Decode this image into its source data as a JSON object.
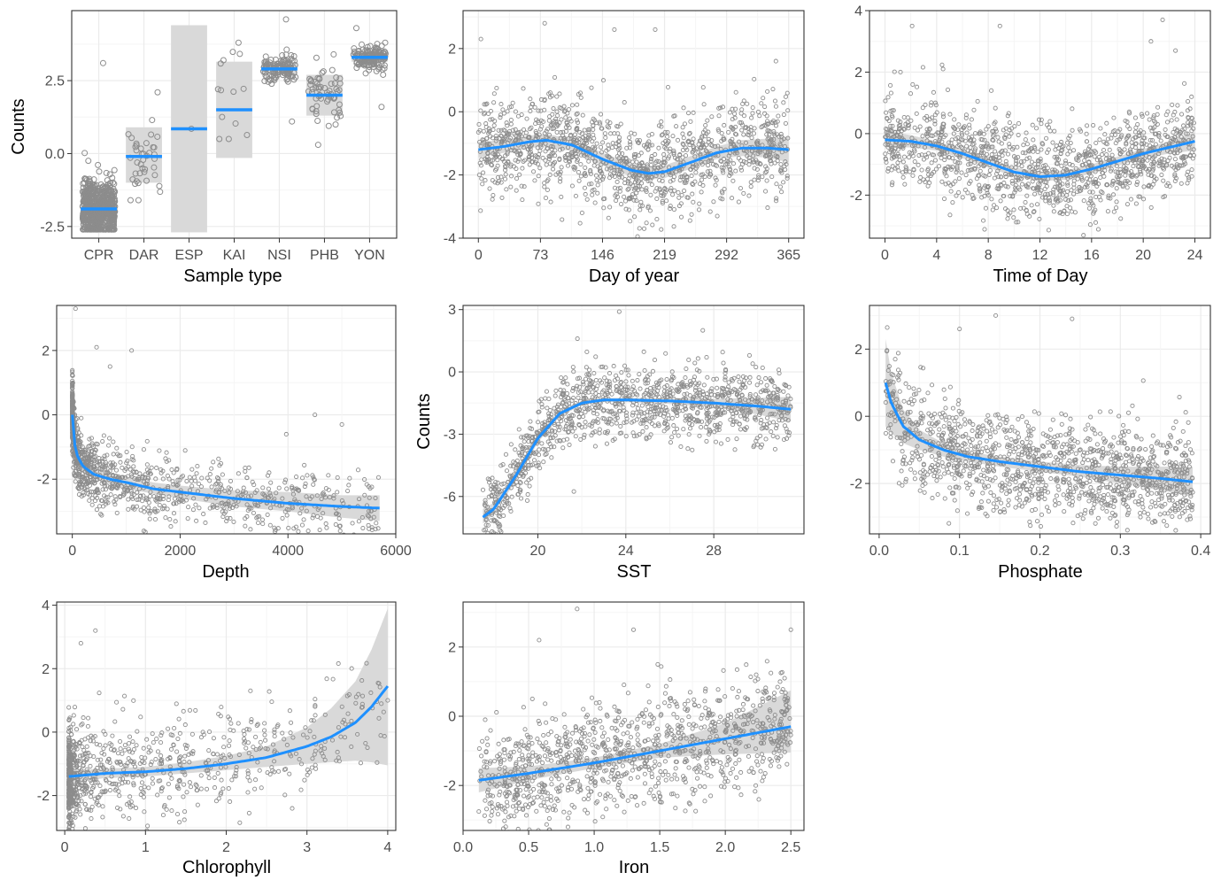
{
  "colors": {
    "point_stroke": "#8c8c8c",
    "fit_line": "#1e90ff",
    "ribbon": "#d9d9d9",
    "grid_major": "#ebebeb",
    "grid_minor": "#f5f5f5",
    "panel_border": "#333333"
  },
  "chart_data": [
    {
      "type": "scatter",
      "xlabel": "Sample type",
      "ylabel": "Counts",
      "categories": [
        "CPR",
        "DAR",
        "ESP",
        "KAI",
        "NSI",
        "PHB",
        "YON"
      ],
      "xlim": [
        0.4,
        7.6
      ],
      "ylim": [
        -2.9,
        4.9
      ],
      "yticks": [
        -2.5,
        0.0,
        2.5
      ],
      "ytick_labels": [
        "-2.5",
        "0.0",
        "2.5"
      ],
      "category_fit": [
        {
          "category": "CPR",
          "mean": -1.9,
          "lower": -2.6,
          "upper": -1.2,
          "n": 600,
          "min": -2.6,
          "max": 3.1
        },
        {
          "category": "DAR",
          "mean": -0.1,
          "lower": -1.0,
          "upper": 0.9,
          "n": 40,
          "min": -1.6,
          "max": 2.1
        },
        {
          "category": "ESP",
          "mean": 0.85,
          "lower": -2.7,
          "upper": 4.4,
          "n": 1,
          "min": 0.85,
          "max": 0.85
        },
        {
          "category": "KAI",
          "mean": 1.5,
          "lower": -0.15,
          "upper": 3.15,
          "n": 14,
          "min": 0.5,
          "max": 3.8
        },
        {
          "category": "NSI",
          "mean": 2.9,
          "lower": 2.7,
          "upper": 3.1,
          "n": 120,
          "min": 1.1,
          "max": 4.6
        },
        {
          "category": "PHB",
          "mean": 2.0,
          "lower": 1.3,
          "upper": 2.7,
          "n": 60,
          "min": 0.3,
          "max": 3.4
        },
        {
          "category": "YON",
          "mean": 3.3,
          "lower": 3.15,
          "upper": 3.45,
          "n": 150,
          "min": 1.6,
          "max": 4.3
        }
      ]
    },
    {
      "type": "scatter",
      "xlabel": "Day of year",
      "ylabel": "",
      "xlim": [
        -18,
        383
      ],
      "ylim": [
        -4.0,
        3.2
      ],
      "xticks": [
        0,
        73,
        146,
        219,
        292,
        365
      ],
      "yticks": [
        -4,
        -2,
        0,
        2
      ],
      "fit": {
        "x": [
          0,
          30,
          60,
          80,
          110,
          146,
          180,
          200,
          219,
          250,
          280,
          310,
          340,
          365
        ],
        "y": [
          -1.2,
          -1.1,
          -0.95,
          -0.9,
          -1.05,
          -1.5,
          -1.85,
          -1.95,
          -1.9,
          -1.6,
          -1.3,
          -1.15,
          -1.15,
          -1.2
        ],
        "lower": [
          -1.45,
          -1.3,
          -1.15,
          -1.1,
          -1.25,
          -1.7,
          -2.05,
          -2.15,
          -2.1,
          -1.8,
          -1.5,
          -1.4,
          -1.45,
          -1.6
        ],
        "upper": [
          -0.95,
          -0.9,
          -0.75,
          -0.7,
          -0.85,
          -1.3,
          -1.65,
          -1.75,
          -1.7,
          -1.4,
          -1.1,
          -0.9,
          -0.85,
          -0.8
        ]
      },
      "points": {
        "n": 1300,
        "x_range": [
          0,
          365
        ],
        "center": "fit",
        "spread": 0.75,
        "outliers": [
          [
            3,
            2.3
          ],
          [
            78,
            2.8
          ],
          [
            160,
            2.6
          ],
          [
            208,
            2.6
          ],
          [
            350,
            1.6
          ],
          [
            195,
            -3.7
          ],
          [
            122,
            -3.2
          ],
          [
            210,
            -3.4
          ]
        ]
      }
    },
    {
      "type": "scatter",
      "xlabel": "Time of Day",
      "ylabel": "",
      "xlim": [
        -1.2,
        25.2
      ],
      "ylim": [
        -3.4,
        4.0
      ],
      "xticks": [
        0,
        4,
        8,
        12,
        16,
        20,
        24
      ],
      "yticks": [
        -2,
        0,
        2,
        4
      ],
      "fit": {
        "x": [
          0,
          2,
          4,
          6,
          8,
          10,
          12,
          14,
          16,
          18,
          20,
          22,
          24
        ],
        "y": [
          -0.2,
          -0.25,
          -0.4,
          -0.65,
          -0.95,
          -1.25,
          -1.4,
          -1.35,
          -1.15,
          -0.9,
          -0.65,
          -0.45,
          -0.25
        ],
        "lower": [
          -0.45,
          -0.45,
          -0.55,
          -0.8,
          -1.1,
          -1.4,
          -1.55,
          -1.5,
          -1.3,
          -1.05,
          -0.8,
          -0.65,
          -0.55
        ],
        "upper": [
          0.1,
          -0.05,
          -0.25,
          -0.5,
          -0.8,
          -1.1,
          -1.25,
          -1.2,
          -1.0,
          -0.75,
          -0.5,
          -0.25,
          0.05
        ]
      },
      "points": {
        "n": 1300,
        "x_range": [
          0,
          24
        ],
        "center": "fit",
        "spread": 0.75,
        "outliers": [
          [
            2.1,
            3.5
          ],
          [
            8.9,
            3.5
          ],
          [
            21.5,
            3.7
          ],
          [
            20.6,
            3.0
          ],
          [
            22.5,
            2.7
          ],
          [
            1.2,
            2.0
          ],
          [
            4.5,
            2.1
          ]
        ]
      }
    },
    {
      "type": "scatter",
      "xlabel": "Depth",
      "ylabel": "",
      "xlim": [
        -290,
        6000
      ],
      "ylim": [
        -3.7,
        3.4
      ],
      "xticks": [
        0,
        2000,
        4000,
        6000
      ],
      "xtick_labels": [
        "0",
        "2000",
        "4000",
        "6000"
      ],
      "yticks": [
        -2,
        0,
        2
      ],
      "fit": {
        "x": [
          0,
          50,
          100,
          200,
          400,
          700,
          1000,
          1500,
          2000,
          3000,
          4000,
          5000,
          5700
        ],
        "y": [
          0.0,
          -1.0,
          -1.3,
          -1.6,
          -1.85,
          -2.0,
          -2.1,
          -2.3,
          -2.4,
          -2.6,
          -2.75,
          -2.85,
          -2.9
        ],
        "lower": [
          -0.6,
          -1.3,
          -1.55,
          -1.8,
          -2.0,
          -2.15,
          -2.3,
          -2.45,
          -2.6,
          -2.85,
          -3.0,
          -3.2,
          -3.3
        ],
        "upper": [
          0.6,
          -0.7,
          -1.05,
          -1.4,
          -1.65,
          -1.8,
          -1.9,
          -2.1,
          -2.2,
          -2.35,
          -2.4,
          -2.5,
          -2.5
        ]
      },
      "points": {
        "n": 1100,
        "x_range": [
          0,
          5700
        ],
        "center": "fit",
        "spread": 0.5,
        "skew_low_x": true,
        "outliers": [
          [
            60,
            3.3
          ],
          [
            450,
            2.1
          ],
          [
            1100,
            2.0
          ],
          [
            700,
            1.5
          ],
          [
            4500,
            0.0
          ],
          [
            5000,
            -0.3
          ]
        ]
      }
    },
    {
      "type": "scatter",
      "xlabel": "SST",
      "ylabel": "Counts",
      "xlim": [
        16.6,
        32.1
      ],
      "ylim": [
        -7.8,
        3.2
      ],
      "xticks": [
        20,
        24,
        28
      ],
      "yticks": [
        -6,
        -3,
        0,
        3
      ],
      "fit": {
        "x": [
          17.5,
          18,
          19,
          20,
          21,
          22,
          23,
          24,
          26,
          28,
          30,
          31.5
        ],
        "y": [
          -7.0,
          -6.6,
          -5.0,
          -3.2,
          -2.0,
          -1.5,
          -1.35,
          -1.35,
          -1.4,
          -1.5,
          -1.65,
          -1.8
        ],
        "lower": [
          -7.3,
          -6.85,
          -5.25,
          -3.4,
          -2.15,
          -1.6,
          -1.45,
          -1.45,
          -1.55,
          -1.7,
          -2.05,
          -2.4
        ],
        "upper": [
          -6.6,
          -6.3,
          -4.75,
          -3.0,
          -1.85,
          -1.4,
          -1.25,
          -1.25,
          -1.25,
          -1.3,
          -1.25,
          -1.2
        ]
      },
      "points": {
        "n": 1200,
        "x_range": [
          17.5,
          31.5
        ],
        "center": "fit",
        "spread": 0.85,
        "outliers": [
          [
            27.5,
            2.0
          ],
          [
            23.7,
            2.9
          ],
          [
            21.8,
            1.6
          ]
        ]
      }
    },
    {
      "type": "scatter",
      "xlabel": "Phosphate",
      "ylabel": "",
      "xlim": [
        -0.012,
        0.412
      ],
      "ylim": [
        -3.5,
        3.3
      ],
      "xticks": [
        0.0,
        0.1,
        0.2,
        0.3,
        0.4
      ],
      "xtick_labels": [
        "0.0",
        "0.1",
        "0.2",
        "0.3",
        "0.4"
      ],
      "yticks": [
        -2,
        0,
        2
      ],
      "fit": {
        "x": [
          0.008,
          0.015,
          0.03,
          0.05,
          0.08,
          0.11,
          0.15,
          0.2,
          0.25,
          0.3,
          0.35,
          0.39
        ],
        "y": [
          1.0,
          0.4,
          -0.3,
          -0.7,
          -1.0,
          -1.2,
          -1.35,
          -1.5,
          -1.65,
          -1.75,
          -1.85,
          -1.95
        ],
        "lower": [
          -0.3,
          -0.5,
          -0.8,
          -1.0,
          -1.2,
          -1.35,
          -1.5,
          -1.65,
          -1.8,
          -2.0,
          -2.2,
          -2.4
        ],
        "upper": [
          2.3,
          1.3,
          0.2,
          -0.4,
          -0.8,
          -1.05,
          -1.2,
          -1.35,
          -1.45,
          -1.5,
          -1.5,
          -1.5
        ]
      },
      "points": {
        "n": 1300,
        "x_range": [
          0.008,
          0.39
        ],
        "center": "fit",
        "spread": 0.75,
        "outliers": [
          [
            0.145,
            3.0
          ],
          [
            0.24,
            2.9
          ],
          [
            0.1,
            2.6
          ],
          [
            0.02,
            1.7
          ]
        ]
      }
    },
    {
      "type": "scatter",
      "xlabel": "Chlorophyll",
      "ylabel": "",
      "xlim": [
        -0.1,
        4.1
      ],
      "ylim": [
        -3.1,
        4.1
      ],
      "xticks": [
        0,
        1,
        2,
        3,
        4
      ],
      "yticks": [
        -2,
        0,
        2,
        4
      ],
      "fit": {
        "x": [
          0.05,
          0.5,
          1,
          1.5,
          2,
          2.5,
          3,
          3.3,
          3.6,
          3.8,
          4.0
        ],
        "y": [
          -1.4,
          -1.3,
          -1.25,
          -1.15,
          -1.0,
          -0.8,
          -0.45,
          -0.15,
          0.3,
          0.8,
          1.45
        ],
        "lower": [
          -1.6,
          -1.45,
          -1.4,
          -1.3,
          -1.2,
          -1.1,
          -1.0,
          -0.95,
          -0.9,
          -0.95,
          -1.05
        ],
        "upper": [
          -1.2,
          -1.15,
          -1.1,
          -0.95,
          -0.75,
          -0.45,
          0.15,
          0.75,
          1.6,
          2.6,
          3.9
        ]
      },
      "points": {
        "n": 900,
        "x_range": [
          0.05,
          4.0
        ],
        "center": "fit",
        "spread": 0.8,
        "skew_low_x": true,
        "outliers": [
          [
            0.38,
            3.2
          ],
          [
            0.2,
            2.8
          ],
          [
            2.3,
            1.3
          ],
          [
            3.1,
            0.8
          ],
          [
            4.0,
            1.0
          ]
        ]
      }
    },
    {
      "type": "scatter",
      "xlabel": "Iron",
      "ylabel": "",
      "xlim": [
        0.0,
        2.6
      ],
      "ylim": [
        -3.3,
        3.3
      ],
      "xticks": [
        0.0,
        0.5,
        1.0,
        1.5,
        2.0,
        2.5
      ],
      "xtick_labels": [
        "0.0",
        "0.5",
        "1.0",
        "1.5",
        "2.0",
        "2.5"
      ],
      "yticks": [
        -2,
        0,
        2
      ],
      "fit": {
        "x": [
          0.12,
          0.5,
          1.0,
          1.5,
          2.0,
          2.5
        ],
        "y": [
          -1.85,
          -1.65,
          -1.35,
          -1.0,
          -0.65,
          -0.3
        ],
        "lower": [
          -2.2,
          -1.85,
          -1.5,
          -1.2,
          -1.1,
          -1.05
        ],
        "upper": [
          -1.5,
          -1.45,
          -1.2,
          -0.8,
          -0.2,
          0.75
        ]
      },
      "points": {
        "n": 1100,
        "x_range": [
          0.12,
          2.5
        ],
        "center": "fit",
        "spread": 0.8,
        "outliers": [
          [
            0.87,
            3.1
          ],
          [
            0.58,
            2.2
          ],
          [
            1.3,
            2.5
          ],
          [
            2.5,
            2.5
          ],
          [
            0.8,
            -3.2
          ]
        ]
      }
    }
  ]
}
